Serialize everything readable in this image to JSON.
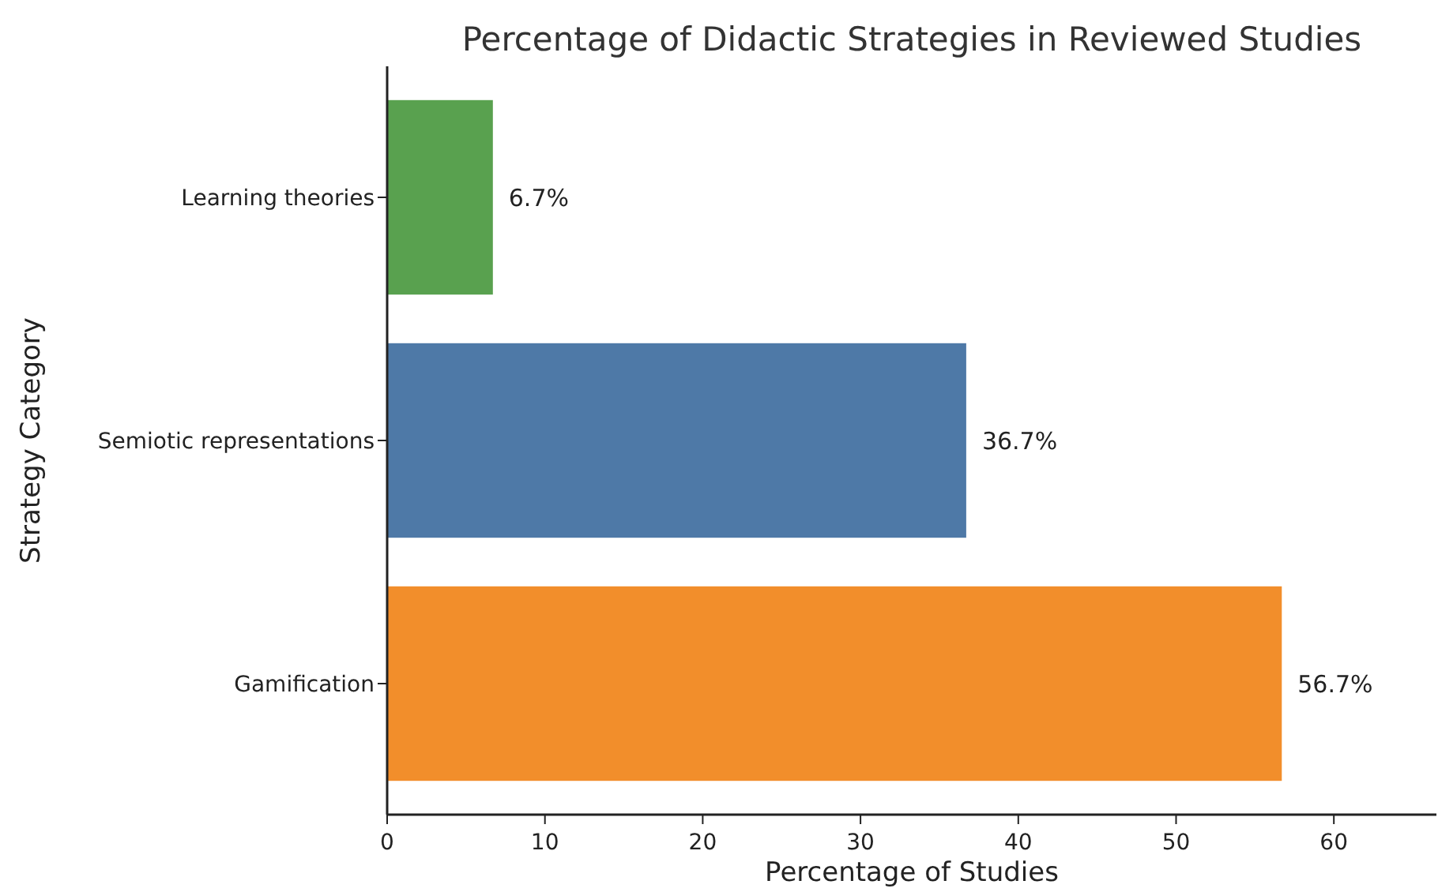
{
  "chart_data": {
    "type": "bar",
    "orientation": "horizontal",
    "title": "Percentage of Didactic Strategies in Reviewed Studies",
    "xlabel": "Percentage of Studies",
    "ylabel": "Strategy Category",
    "categories": [
      "Learning theories",
      "Semiotic representations",
      "Gamification"
    ],
    "values": [
      6.7,
      36.7,
      56.7
    ],
    "colors": [
      "#59a14f",
      "#4e79a7",
      "#f28e2b"
    ],
    "value_labels": [
      "6.7%",
      "36.7%",
      "56.7%"
    ],
    "xlim": [
      0,
      66.5
    ],
    "xticks": [
      0,
      10,
      20,
      30,
      40,
      50,
      60
    ],
    "grid": false
  }
}
